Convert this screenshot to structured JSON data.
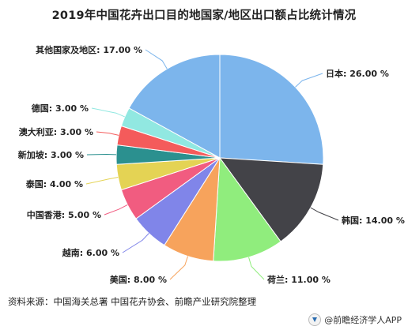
{
  "chart_data": {
    "type": "pie",
    "title": "2019年中国花卉出口目的地国家/地区出口额占比统计情况",
    "unit": "%",
    "categories": [
      "日本",
      "韩国",
      "荷兰",
      "美国",
      "越南",
      "中国香港",
      "泰国",
      "新加坡",
      "澳大利亚",
      "德国",
      "其他国家及地区"
    ],
    "values": [
      26.0,
      14.0,
      11.0,
      8.0,
      6.0,
      5.0,
      4.0,
      3.0,
      3.0,
      3.0,
      17.0
    ],
    "labels": [
      "日本: 26.00 %",
      "韩国: 14.00 %",
      "荷兰: 11.00 %",
      "美国: 8.00 %",
      "越南: 6.00 %",
      "中国香港: 5.00 %",
      "泰国: 4.00 %",
      "新加坡: 3.00 %",
      "澳大利亚: 3.00 %",
      "德国: 3.00 %",
      "其他国家及地区: 17.00 %"
    ],
    "colors": [
      "#7cb5ec",
      "#434348",
      "#90ed7d",
      "#f7a35c",
      "#8085e9",
      "#f15c80",
      "#e4d354",
      "#2b908f",
      "#f45b5b",
      "#91e8e1",
      "#7cb5ec"
    ],
    "start_angle_deg": 0,
    "direction": "clockwise"
  },
  "source_text": "资料来源：中国海关总署 中国花卉协会、前瞻产业研究院整理",
  "footer": {
    "text": "@前瞻经济学人APP",
    "icon": "qianzhan-logo-icon"
  }
}
